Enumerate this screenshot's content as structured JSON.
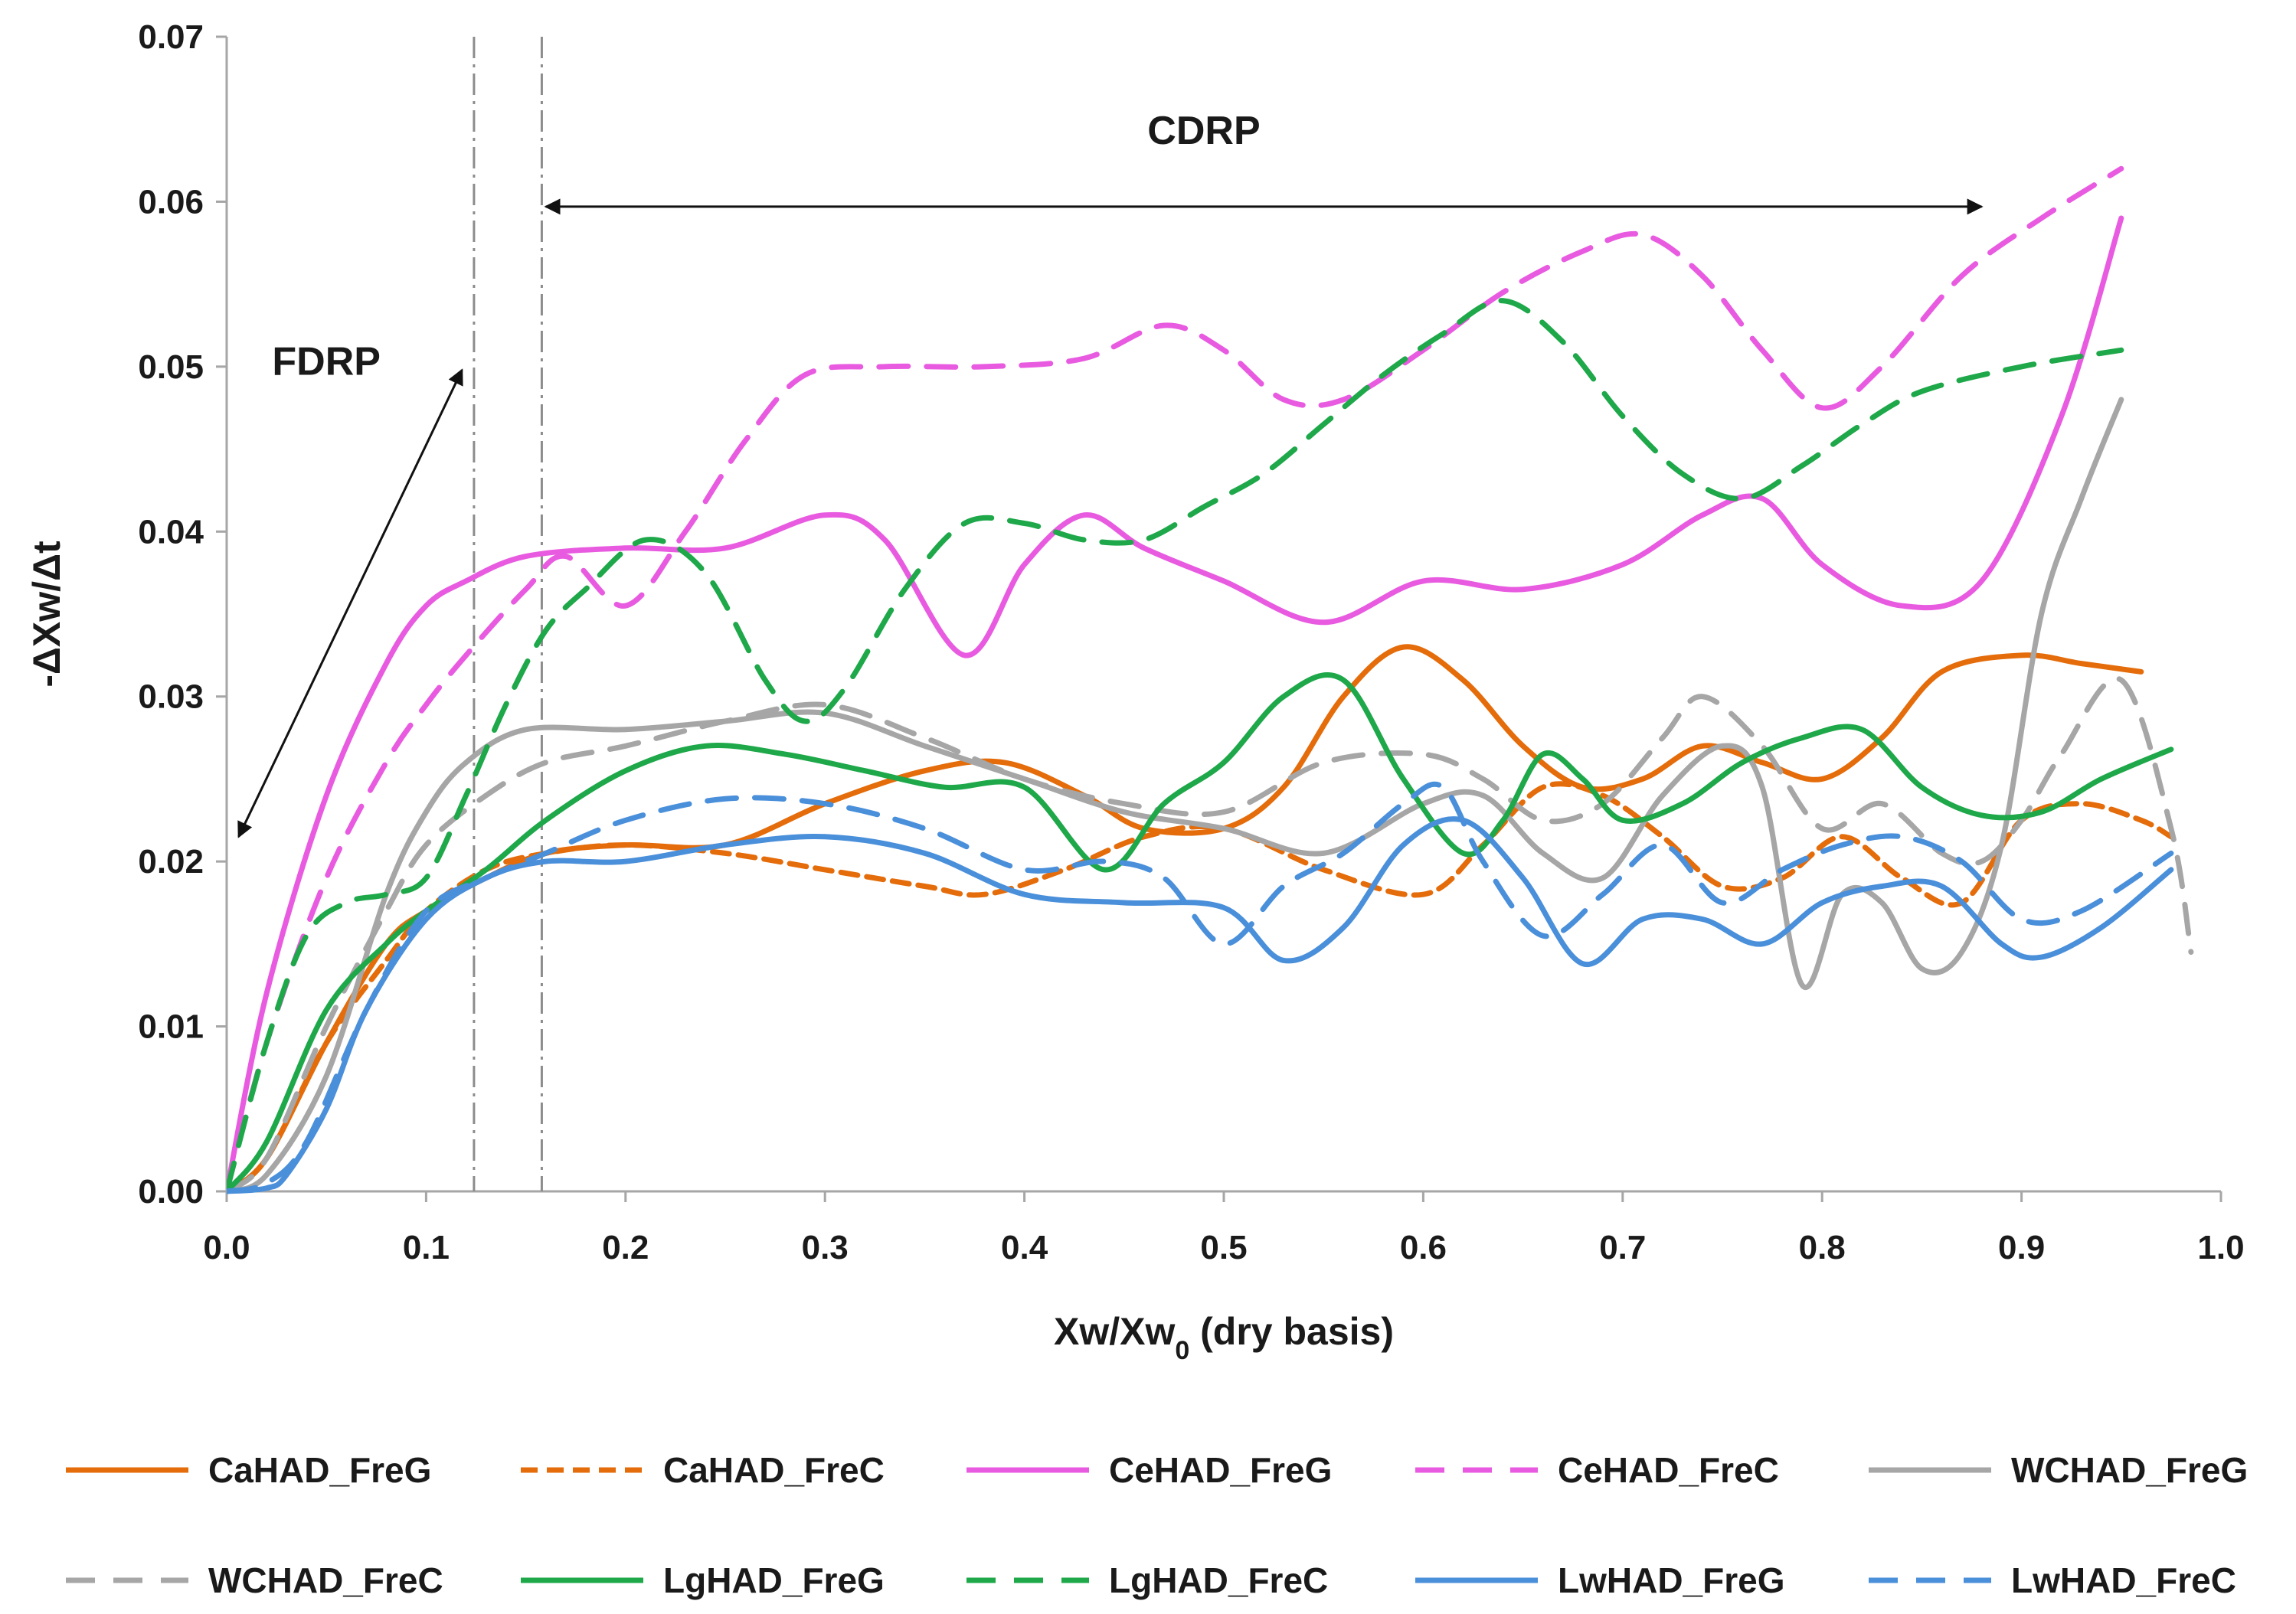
{
  "chart_data": {
    "type": "line",
    "title": "",
    "xlabel_main": "Xw/Xw",
    "xlabel_sub": "0",
    "xlabel_tail": " (dry basis)",
    "ylabel": "-ΔXw/Δt",
    "xlim": [
      0.0,
      1.0
    ],
    "ylim": [
      0.0,
      0.07
    ],
    "grid": false,
    "legend_position": "bottom",
    "x_ticks": [
      0.0,
      0.1,
      0.2,
      0.3,
      0.4,
      0.5,
      0.6,
      0.7,
      0.8,
      0.9,
      1.0
    ],
    "x_tick_labels": [
      "0.0",
      "0.1",
      "0.2",
      "0.3",
      "0.4",
      "0.5",
      "0.6",
      "0.7",
      "0.8",
      "0.9",
      "1.0"
    ],
    "y_ticks": [
      0.0,
      0.01,
      0.02,
      0.03,
      0.04,
      0.05,
      0.06,
      0.07
    ],
    "y_tick_labels": [
      "0.00",
      "0.01",
      "0.02",
      "0.03",
      "0.04",
      "0.05",
      "0.06",
      "0.07"
    ],
    "vlines": [
      0.124,
      0.158
    ],
    "annotations": [
      {
        "text": "CDRP",
        "x": 0.49,
        "y": 0.0635,
        "arrow_from": [
          0.16,
          0.0597
        ],
        "arrow_to": [
          0.88,
          0.0597
        ],
        "double_headed": true
      },
      {
        "text": "FDRP",
        "x": 0.05,
        "y": 0.0495,
        "arrow_from": [
          0.006,
          0.0215
        ],
        "arrow_to": [
          0.118,
          0.0498
        ],
        "double_headed": true
      }
    ],
    "series": [
      {
        "name": "CaHAD_FreG",
        "color": "#E46C0A",
        "dash": "solid",
        "x": [
          0,
          0.02,
          0.05,
          0.08,
          0.1,
          0.13,
          0.16,
          0.2,
          0.25,
          0.3,
          0.35,
          0.39,
          0.43,
          0.46,
          0.5,
          0.53,
          0.56,
          0.59,
          0.62,
          0.65,
          0.68,
          0.71,
          0.74,
          0.77,
          0.8,
          0.83,
          0.86,
          0.9,
          0.93,
          0.96
        ],
        "y": [
          0,
          0.002,
          0.009,
          0.015,
          0.017,
          0.019,
          0.0205,
          0.021,
          0.021,
          0.0235,
          0.0255,
          0.026,
          0.024,
          0.022,
          0.022,
          0.0245,
          0.03,
          0.033,
          0.031,
          0.027,
          0.0245,
          0.025,
          0.027,
          0.026,
          0.025,
          0.0275,
          0.0315,
          0.0325,
          0.032,
          0.0315
        ]
      },
      {
        "name": "CaHAD_FreC",
        "color": "#E46C0A",
        "dash": "short",
        "x": [
          0,
          0.02,
          0.05,
          0.08,
          0.1,
          0.13,
          0.16,
          0.2,
          0.25,
          0.3,
          0.35,
          0.38,
          0.42,
          0.46,
          0.5,
          0.55,
          0.6,
          0.63,
          0.66,
          0.69,
          0.72,
          0.75,
          0.78,
          0.81,
          0.84,
          0.87,
          0.9,
          0.93,
          0.96,
          0.975
        ],
        "y": [
          0,
          0.002,
          0.009,
          0.014,
          0.017,
          0.0195,
          0.0205,
          0.021,
          0.0205,
          0.0195,
          0.0185,
          0.018,
          0.0195,
          0.0215,
          0.022,
          0.0195,
          0.018,
          0.021,
          0.0245,
          0.024,
          0.0215,
          0.0185,
          0.019,
          0.0215,
          0.019,
          0.0175,
          0.0225,
          0.0235,
          0.0225,
          0.0215
        ]
      },
      {
        "name": "CeHAD_FreG",
        "color": "#E85BE0",
        "dash": "solid",
        "x": [
          0,
          0.02,
          0.05,
          0.08,
          0.1,
          0.12,
          0.15,
          0.2,
          0.25,
          0.3,
          0.33,
          0.37,
          0.4,
          0.43,
          0.46,
          0.5,
          0.55,
          0.6,
          0.65,
          0.7,
          0.74,
          0.77,
          0.8,
          0.84,
          0.88,
          0.92,
          0.95
        ],
        "y": [
          0,
          0.012,
          0.024,
          0.032,
          0.0355,
          0.037,
          0.0385,
          0.039,
          0.039,
          0.041,
          0.0395,
          0.0325,
          0.038,
          0.041,
          0.039,
          0.037,
          0.0345,
          0.037,
          0.0365,
          0.038,
          0.041,
          0.042,
          0.038,
          0.0355,
          0.037,
          0.047,
          0.059
        ]
      },
      {
        "name": "CeHAD_FreC",
        "color": "#E85BE0",
        "dash": "long",
        "x": [
          0,
          0.02,
          0.05,
          0.08,
          0.1,
          0.12,
          0.15,
          0.17,
          0.2,
          0.23,
          0.26,
          0.29,
          0.33,
          0.38,
          0.43,
          0.47,
          0.5,
          0.53,
          0.56,
          0.6,
          0.64,
          0.68,
          0.71,
          0.74,
          0.77,
          0.8,
          0.83,
          0.87,
          0.91,
          0.95
        ],
        "y": [
          0,
          0.009,
          0.019,
          0.026,
          0.0295,
          0.0325,
          0.0365,
          0.0385,
          0.0355,
          0.04,
          0.0455,
          0.0495,
          0.05,
          0.05,
          0.0505,
          0.0525,
          0.051,
          0.048,
          0.048,
          0.051,
          0.0545,
          0.057,
          0.058,
          0.0555,
          0.051,
          0.0475,
          0.05,
          0.0555,
          0.059,
          0.062
        ]
      },
      {
        "name": "WCHAD_FreG",
        "color": "#A6A6A6",
        "dash": "solid",
        "x": [
          0,
          0.02,
          0.05,
          0.08,
          0.1,
          0.12,
          0.15,
          0.2,
          0.25,
          0.3,
          0.35,
          0.4,
          0.45,
          0.5,
          0.55,
          0.6,
          0.63,
          0.66,
          0.69,
          0.72,
          0.75,
          0.77,
          0.79,
          0.81,
          0.83,
          0.85,
          0.87,
          0.89,
          0.91,
          0.93,
          0.95
        ],
        "y": [
          0,
          0.001,
          0.007,
          0.018,
          0.023,
          0.026,
          0.028,
          0.028,
          0.0285,
          0.029,
          0.027,
          0.025,
          0.023,
          0.022,
          0.0205,
          0.0235,
          0.024,
          0.0205,
          0.019,
          0.024,
          0.027,
          0.0245,
          0.0125,
          0.018,
          0.0175,
          0.0135,
          0.0145,
          0.021,
          0.035,
          0.042,
          0.048
        ]
      },
      {
        "name": "WCHAD_FreC",
        "color": "#A6A6A6",
        "dash": "long",
        "x": [
          0,
          0.02,
          0.05,
          0.08,
          0.1,
          0.13,
          0.16,
          0.2,
          0.25,
          0.3,
          0.35,
          0.4,
          0.45,
          0.5,
          0.55,
          0.6,
          0.63,
          0.66,
          0.69,
          0.72,
          0.74,
          0.77,
          0.8,
          0.83,
          0.86,
          0.88,
          0.9,
          0.92,
          0.95,
          0.975,
          0.985
        ],
        "y": [
          0,
          0.002,
          0.01,
          0.017,
          0.021,
          0.024,
          0.026,
          0.027,
          0.0285,
          0.0295,
          0.0275,
          0.025,
          0.0235,
          0.023,
          0.026,
          0.0265,
          0.025,
          0.0225,
          0.0235,
          0.0275,
          0.03,
          0.027,
          0.022,
          0.0235,
          0.0205,
          0.02,
          0.0225,
          0.0265,
          0.031,
          0.022,
          0.0145
        ]
      },
      {
        "name": "LgHAD_FreG",
        "color": "#1EA84A",
        "dash": "solid",
        "x": [
          0,
          0.02,
          0.05,
          0.08,
          0.1,
          0.13,
          0.16,
          0.2,
          0.24,
          0.28,
          0.32,
          0.36,
          0.4,
          0.44,
          0.47,
          0.5,
          0.53,
          0.56,
          0.59,
          0.62,
          0.64,
          0.66,
          0.68,
          0.7,
          0.73,
          0.76,
          0.79,
          0.82,
          0.85,
          0.88,
          0.91,
          0.94,
          0.975
        ],
        "y": [
          0,
          0.003,
          0.011,
          0.015,
          0.017,
          0.0195,
          0.0225,
          0.0255,
          0.027,
          0.0265,
          0.0255,
          0.0245,
          0.0245,
          0.0195,
          0.0235,
          0.026,
          0.03,
          0.031,
          0.025,
          0.0205,
          0.0225,
          0.0265,
          0.025,
          0.0225,
          0.0235,
          0.026,
          0.0275,
          0.028,
          0.0245,
          0.0228,
          0.023,
          0.025,
          0.0268
        ]
      },
      {
        "name": "LgHAD_FreC",
        "color": "#1EA84A",
        "dash": "long",
        "x": [
          0,
          0.02,
          0.04,
          0.06,
          0.08,
          0.1,
          0.12,
          0.14,
          0.16,
          0.18,
          0.21,
          0.24,
          0.27,
          0.29,
          0.31,
          0.34,
          0.37,
          0.4,
          0.43,
          0.46,
          0.49,
          0.52,
          0.55,
          0.58,
          0.61,
          0.64,
          0.67,
          0.7,
          0.73,
          0.76,
          0.79,
          0.82,
          0.85,
          0.9,
          0.95
        ],
        "y": [
          0,
          0.009,
          0.0155,
          0.0175,
          0.018,
          0.019,
          0.024,
          0.0295,
          0.034,
          0.0365,
          0.0395,
          0.0375,
          0.031,
          0.0285,
          0.0305,
          0.0365,
          0.0405,
          0.0405,
          0.0395,
          0.0395,
          0.0415,
          0.0435,
          0.0465,
          0.0495,
          0.052,
          0.054,
          0.0515,
          0.047,
          0.0435,
          0.042,
          0.044,
          0.0465,
          0.0485,
          0.05,
          0.051
        ]
      },
      {
        "name": "LwHAD_FreG",
        "color": "#4A8FDA",
        "dash": "solid",
        "x": [
          0,
          0.02,
          0.03,
          0.05,
          0.07,
          0.1,
          0.13,
          0.16,
          0.2,
          0.25,
          0.3,
          0.35,
          0.4,
          0.45,
          0.5,
          0.53,
          0.56,
          0.59,
          0.62,
          0.65,
          0.68,
          0.71,
          0.74,
          0.77,
          0.8,
          0.83,
          0.86,
          0.89,
          0.91,
          0.94,
          0.975
        ],
        "y": [
          0,
          0.0002,
          0.001,
          0.005,
          0.011,
          0.0165,
          0.019,
          0.02,
          0.02,
          0.021,
          0.0215,
          0.0205,
          0.018,
          0.0175,
          0.0172,
          0.014,
          0.016,
          0.021,
          0.0225,
          0.019,
          0.0138,
          0.0165,
          0.0165,
          0.015,
          0.0175,
          0.0185,
          0.0185,
          0.015,
          0.0142,
          0.016,
          0.0195
        ]
      },
      {
        "name": "LwHAD_FreC",
        "color": "#4A8FDA",
        "dash": "long",
        "x": [
          0,
          0.02,
          0.04,
          0.07,
          0.1,
          0.13,
          0.16,
          0.2,
          0.25,
          0.3,
          0.35,
          0.4,
          0.44,
          0.47,
          0.5,
          0.53,
          0.56,
          0.59,
          0.61,
          0.63,
          0.66,
          0.69,
          0.72,
          0.75,
          0.78,
          0.81,
          0.84,
          0.87,
          0.9,
          0.93,
          0.975
        ],
        "y": [
          0,
          0.0005,
          0.003,
          0.011,
          0.017,
          0.019,
          0.0205,
          0.0225,
          0.0238,
          0.0235,
          0.022,
          0.0195,
          0.02,
          0.019,
          0.015,
          0.0185,
          0.0205,
          0.0235,
          0.0245,
          0.02,
          0.0155,
          0.018,
          0.021,
          0.0175,
          0.0195,
          0.021,
          0.0215,
          0.02,
          0.0165,
          0.017,
          0.0205
        ]
      }
    ]
  }
}
